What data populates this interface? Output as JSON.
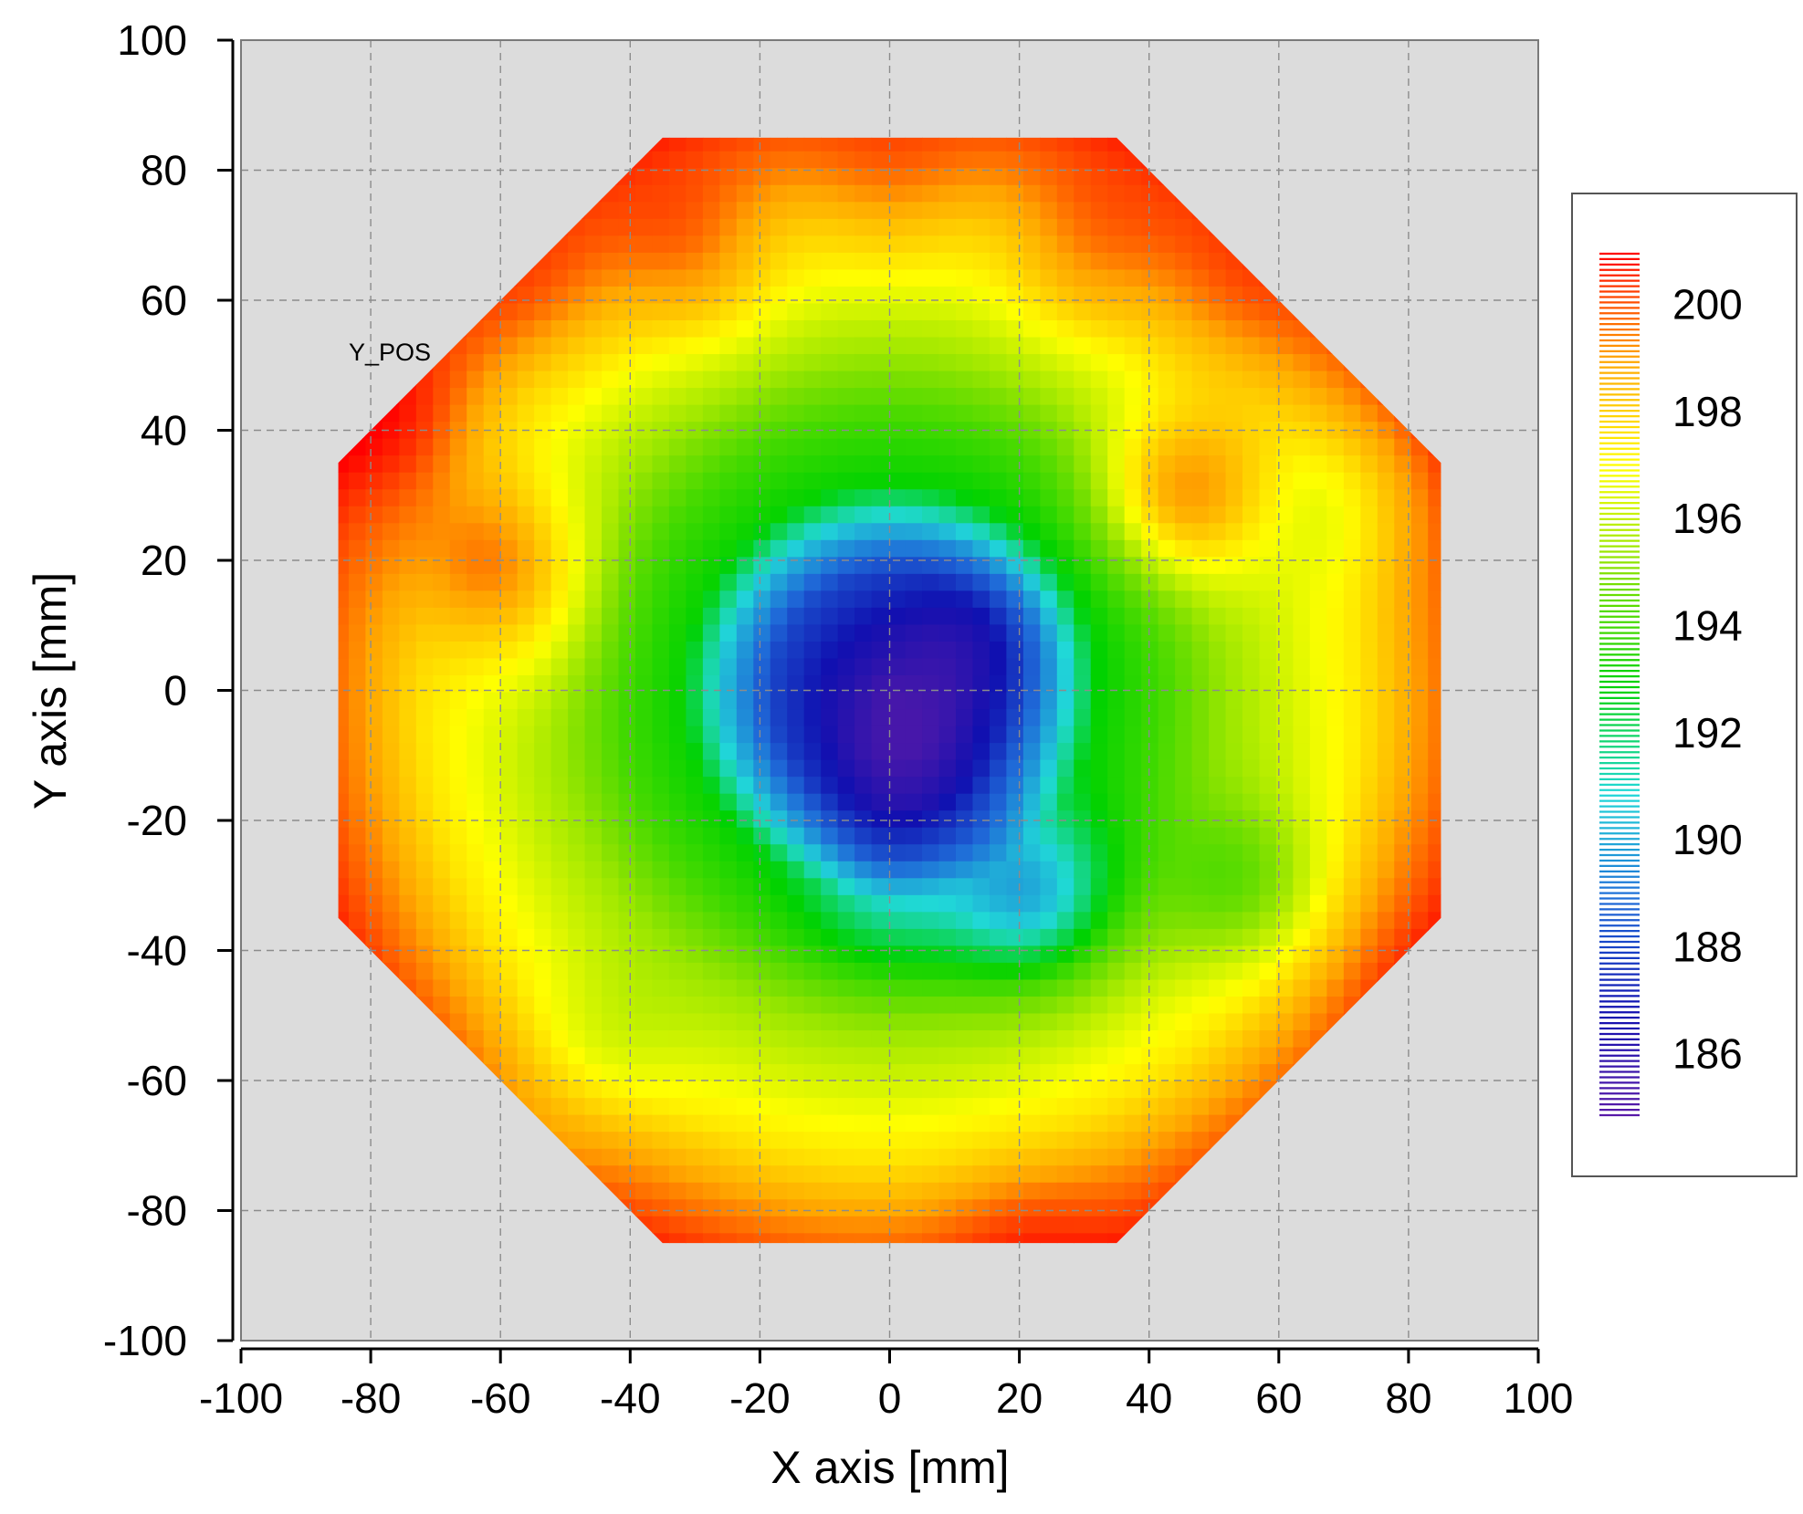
{
  "chart_data": {
    "type": "heatmap",
    "subtype": "wafer-map",
    "title": "",
    "annotation": "Y_POS",
    "xlabel": "X axis [mm]",
    "ylabel": "Y axis [mm]",
    "xlim": [
      -100,
      100
    ],
    "ylim": [
      -100,
      100
    ],
    "x_ticks": [
      -100,
      -80,
      -60,
      -40,
      -20,
      0,
      20,
      40,
      60,
      80,
      100
    ],
    "y_ticks": [
      -100,
      -80,
      -60,
      -40,
      -20,
      0,
      20,
      40,
      60,
      80,
      100
    ],
    "grid": true,
    "background_color": "#dcdcdc",
    "wafer": {
      "outline_mm": [
        [
          -35,
          85
        ],
        [
          35,
          85
        ],
        [
          85,
          35
        ],
        [
          85,
          -35
        ],
        [
          35,
          -85
        ],
        [
          -35,
          -85
        ],
        [
          -85,
          -35
        ],
        [
          -85,
          35
        ]
      ],
      "center_mm": [
        0,
        0
      ]
    },
    "colorbar": {
      "min": 184.8,
      "max": 201.0,
      "tick_labels": [
        "200",
        "198",
        "196",
        "194",
        "192",
        "190",
        "188",
        "186"
      ],
      "colors": [
        "#5a1aa8",
        "#1010b0",
        "#1f6ad8",
        "#20d8d8",
        "#00d200",
        "#7ee000",
        "#ffff00",
        "#ffa500",
        "#ff0000"
      ],
      "placement": "right"
    },
    "features": [
      {
        "x": 3,
        "y": -10,
        "value": 185.5
      },
      {
        "x": -2,
        "y": 2,
        "value": 186.5
      },
      {
        "x": 15,
        "y": 10,
        "value": 186.8
      },
      {
        "x": 0,
        "y": -30,
        "value": 190.3
      },
      {
        "x": 22,
        "y": -32,
        "value": 190.2
      },
      {
        "x": -55,
        "y": 10,
        "value": 196.5
      },
      {
        "x": 55,
        "y": -30,
        "value": 194.5
      },
      {
        "x": -45,
        "y": -55,
        "value": 196.5
      },
      {
        "x": 0,
        "y": 75,
        "value": 199.0
      },
      {
        "x": -30,
        "y": 65,
        "value": 199.2
      },
      {
        "x": 30,
        "y": 65,
        "value": 199.0
      },
      {
        "x": 50,
        "y": 58,
        "value": 199.2
      },
      {
        "x": -52,
        "y": 58,
        "value": 199.3
      },
      {
        "x": -60,
        "y": 20,
        "value": 199.0
      },
      {
        "x": 45,
        "y": 30,
        "value": 199.0
      },
      {
        "x": -75,
        "y": 40,
        "value": 200.6
      },
      {
        "x": 80,
        "y": -45,
        "value": 200.8
      },
      {
        "x": 50,
        "y": -80,
        "value": 200.6
      },
      {
        "x": 20,
        "y": -82,
        "value": 200.2
      },
      {
        "x": -60,
        "y": -75,
        "value": 199.6
      },
      {
        "x": 70,
        "y": -10,
        "value": 197.2
      },
      {
        "x": 70,
        "y": 30,
        "value": 197.0
      }
    ],
    "radial_profile": {
      "r_mm": [
        0,
        10,
        18,
        25,
        32,
        42,
        52,
        62,
        72,
        82,
        92,
        120
      ],
      "value": [
        186.0,
        186.8,
        188.0,
        190.2,
        193.0,
        194.0,
        195.4,
        196.4,
        197.5,
        199.2,
        200.5,
        201.0
      ]
    }
  }
}
